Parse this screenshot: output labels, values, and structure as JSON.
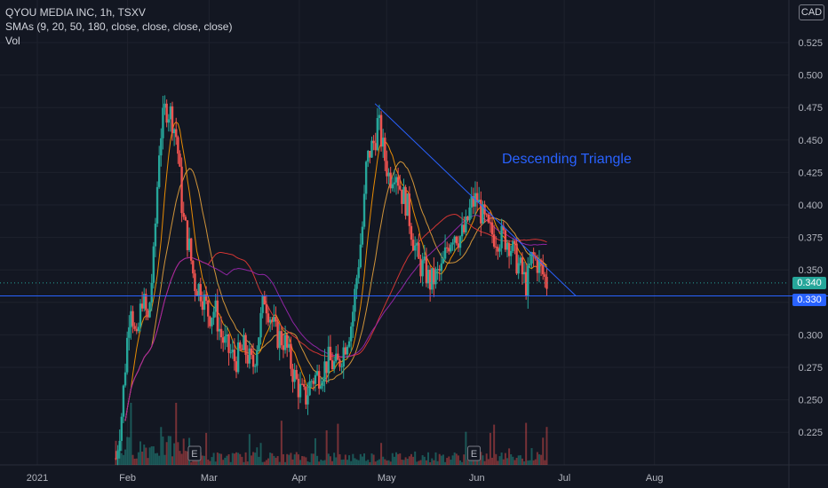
{
  "legend": {
    "symbol_line": "QYOU MEDIA INC, 1h, TSXV",
    "sma_line": "SMAs (9, 20, 50, 180, close, close, close, close)",
    "volume_line": "Vol"
  },
  "currency": "CAD",
  "chart_data": {
    "type": "candlestick",
    "title": "QYOU MEDIA INC, 1h, TSXV",
    "y_axis": {
      "side": "right",
      "range": [
        0.2,
        0.535
      ],
      "ticks": [
        "0.525",
        "0.500",
        "0.475",
        "0.450",
        "0.425",
        "0.400",
        "0.375",
        "0.350",
        "0.325",
        "0.300",
        "0.275",
        "0.250",
        "0.225"
      ]
    },
    "x_axis": {
      "ticks": [
        "2021",
        "Feb",
        "Mar",
        "Apr",
        "May",
        "Jun",
        "Jul",
        "Aug"
      ],
      "range": [
        "2021-01-01",
        "2021-08-31"
      ]
    },
    "current_price": {
      "label": "0.340",
      "value": 0.34,
      "color": "#26a69a"
    },
    "horizontal_line": {
      "label": "0.330",
      "value": 0.33,
      "color": "#2962ff"
    },
    "trendline": {
      "from": [
        "2021-04-27",
        0.478
      ],
      "to": [
        "2021-07-05",
        0.33
      ],
      "color": "#2962ff"
    },
    "annotation": {
      "text": "Descending Triangle",
      "color": "#2962ff"
    },
    "earnings_markers": [
      {
        "label": "E",
        "date": "2021-02-24"
      },
      {
        "label": "E",
        "date": "2021-05-31"
      }
    ],
    "price_path": [
      [
        "2021-01-28",
        0.205
      ],
      [
        "2021-01-30",
        0.24
      ],
      [
        "2021-02-02",
        0.33
      ],
      [
        "2021-02-04",
        0.29
      ],
      [
        "2021-02-06",
        0.33
      ],
      [
        "2021-02-08",
        0.31
      ],
      [
        "2021-02-10",
        0.36
      ],
      [
        "2021-02-12",
        0.45
      ],
      [
        "2021-02-14",
        0.475
      ],
      [
        "2021-02-16",
        0.47
      ],
      [
        "2021-02-18",
        0.45
      ],
      [
        "2021-02-20",
        0.39
      ],
      [
        "2021-02-22",
        0.37
      ],
      [
        "2021-02-24",
        0.34
      ],
      [
        "2021-02-26",
        0.335
      ],
      [
        "2021-03-01",
        0.315
      ],
      [
        "2021-03-03",
        0.32
      ],
      [
        "2021-03-05",
        0.3
      ],
      [
        "2021-03-07",
        0.29
      ],
      [
        "2021-03-10",
        0.28
      ],
      [
        "2021-03-13",
        0.29
      ],
      [
        "2021-03-16",
        0.275
      ],
      [
        "2021-03-18",
        0.3
      ],
      [
        "2021-03-20",
        0.33
      ],
      [
        "2021-03-22",
        0.315
      ],
      [
        "2021-03-24",
        0.3
      ],
      [
        "2021-03-27",
        0.295
      ],
      [
        "2021-03-30",
        0.27
      ],
      [
        "2021-04-01",
        0.258
      ],
      [
        "2021-04-03",
        0.25
      ],
      [
        "2021-04-05",
        0.265
      ],
      [
        "2021-04-08",
        0.27
      ],
      [
        "2021-04-11",
        0.28
      ],
      [
        "2021-04-14",
        0.275
      ],
      [
        "2021-04-17",
        0.295
      ],
      [
        "2021-04-19",
        0.31
      ],
      [
        "2021-04-20",
        0.33
      ],
      [
        "2021-04-21",
        0.35
      ],
      [
        "2021-04-22",
        0.37
      ],
      [
        "2021-04-23",
        0.39
      ],
      [
        "2021-04-24",
        0.43
      ],
      [
        "2021-04-25",
        0.44
      ],
      [
        "2021-04-27",
        0.45
      ],
      [
        "2021-04-28",
        0.465
      ],
      [
        "2021-04-30",
        0.44
      ],
      [
        "2021-05-02",
        0.42
      ],
      [
        "2021-05-04",
        0.43
      ],
      [
        "2021-05-06",
        0.41
      ],
      [
        "2021-05-08",
        0.4
      ],
      [
        "2021-05-10",
        0.375
      ],
      [
        "2021-05-12",
        0.355
      ],
      [
        "2021-05-14",
        0.35
      ],
      [
        "2021-05-16",
        0.34
      ],
      [
        "2021-05-18",
        0.345
      ],
      [
        "2021-05-20",
        0.35
      ],
      [
        "2021-05-22",
        0.37
      ],
      [
        "2021-05-24",
        0.38
      ],
      [
        "2021-05-26",
        0.375
      ],
      [
        "2021-05-28",
        0.38
      ],
      [
        "2021-05-30",
        0.4
      ],
      [
        "2021-06-01",
        0.405
      ],
      [
        "2021-06-03",
        0.39
      ],
      [
        "2021-06-05",
        0.38
      ],
      [
        "2021-06-08",
        0.375
      ],
      [
        "2021-06-10",
        0.375
      ],
      [
        "2021-06-12",
        0.372
      ],
      [
        "2021-06-14",
        0.36
      ],
      [
        "2021-06-16",
        0.35
      ],
      [
        "2021-06-18",
        0.338
      ],
      [
        "2021-06-20",
        0.36
      ],
      [
        "2021-06-22",
        0.355
      ],
      [
        "2021-06-24",
        0.345
      ],
      [
        "2021-06-25",
        0.34
      ]
    ],
    "series": [
      {
        "name": "SMA 9",
        "color": "#ff9800"
      },
      {
        "name": "SMA 20",
        "color": "#e6a23c"
      },
      {
        "name": "SMA 50",
        "color": "#e53935"
      },
      {
        "name": "SMA 180",
        "color": "#9c27b0"
      }
    ],
    "volume_colors": {
      "up": "#26a69a",
      "down": "#ef5350"
    },
    "candle_colors": {
      "up": "#26a69a",
      "down": "#ef5350"
    }
  }
}
